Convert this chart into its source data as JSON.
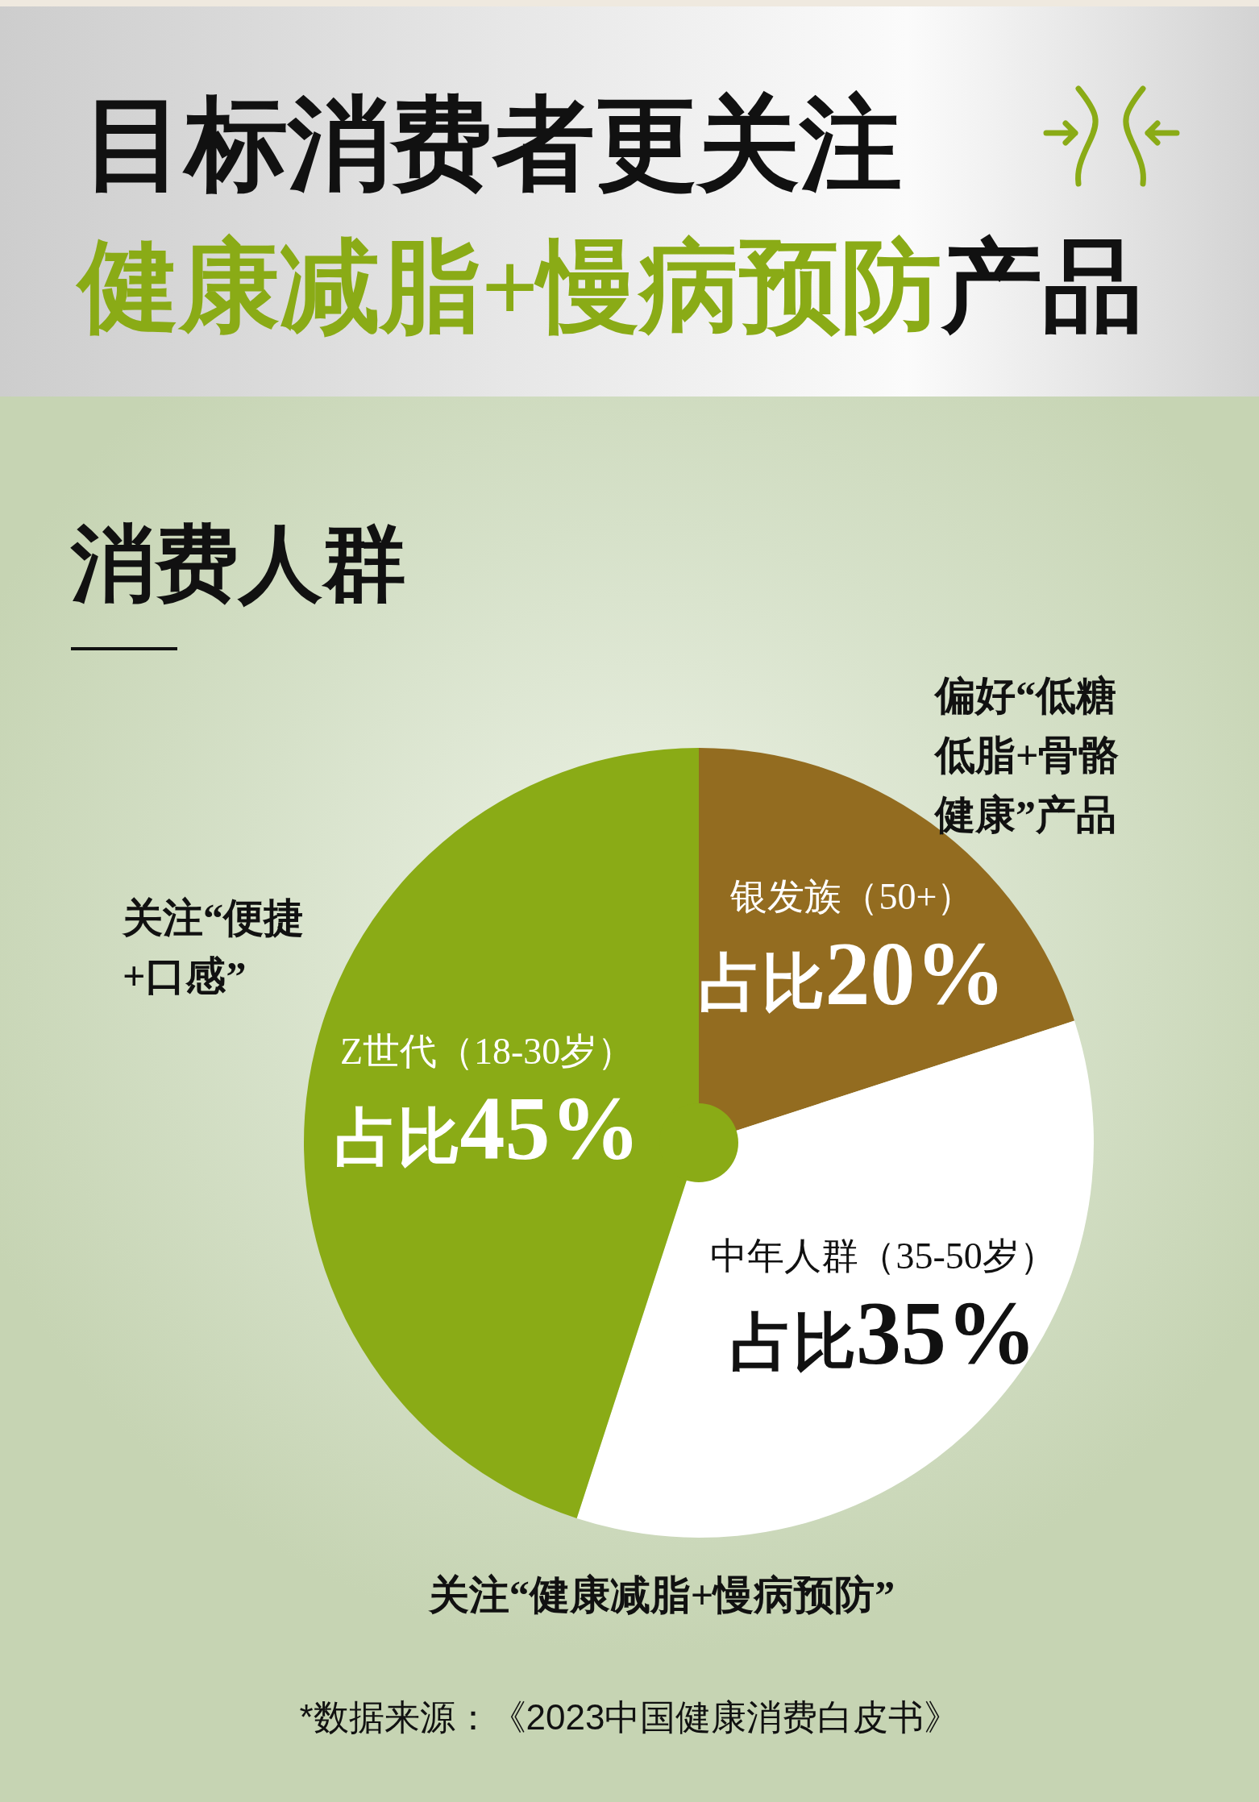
{
  "chart_data": {
    "type": "pie",
    "title": "目标消费者更关注",
    "subtitle": "健康减脂+慢病预防产品",
    "categories": [
      "银发族（50+）",
      "中年人群（35-50岁）",
      "Z世代（18-30岁）"
    ],
    "values": [
      20,
      35,
      45
    ],
    "colors": [
      "#936c20",
      "#ffffff",
      "#8aab16"
    ],
    "value_labels": [
      "占比20%",
      "占比35%",
      "占比45%"
    ],
    "annotations": [
      "消费人群",
      "关注“便捷+口感”",
      "偏好“低糖低脂+骨骼健康”产品",
      "关注“健康减脂+慢病预防”",
      "*数据来源：《2023中国健康消费白皮书》"
    ]
  }
}
